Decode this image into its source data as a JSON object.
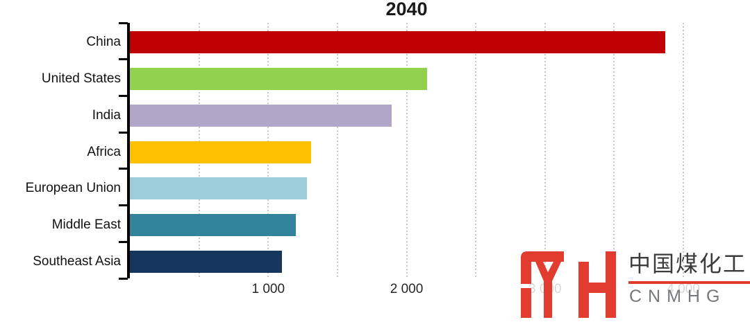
{
  "chart_data": {
    "type": "bar",
    "orientation": "horizontal",
    "title": "2040",
    "categories": [
      "China",
      "United States",
      "India",
      "Africa",
      "European Union",
      "Middle East",
      "Southeast Asia"
    ],
    "values": [
      3870,
      2150,
      1890,
      1310,
      1280,
      1200,
      1100
    ],
    "bar_colors": [
      "#c00000",
      "#92d050",
      "#b1a5c8",
      "#ffc000",
      "#9dccdb",
      "#31849b",
      "#17365d"
    ],
    "xlabel": "",
    "ylabel": "",
    "xlim": [
      0,
      4000
    ],
    "gridline_interval": 500,
    "grid": "vertical-dotted",
    "legend": "none",
    "xticks": [
      {
        "label": "1 000",
        "value": 1000,
        "obscured": false
      },
      {
        "label": "2 000",
        "value": 2000,
        "obscured": false
      },
      {
        "label": "3 000",
        "value": 3000,
        "obscured": true
      },
      {
        "label": "4 000",
        "value": 4000,
        "obscured": true
      }
    ]
  },
  "logo": {
    "mark": "MH-monogram",
    "chinese_text": "中国煤化工",
    "latin_text": "CNMHG",
    "mark_color": "#e23b30",
    "chinese_color": "#3b3b3b",
    "latin_color": "#76797c",
    "underline_color": "#e23b30"
  },
  "colors": {
    "background": "#ffffff",
    "axis": "#000000",
    "gridline": "#c6c6c6",
    "title": "#1a1a1a",
    "category_label": "#111111",
    "tick_label": "#262626"
  }
}
